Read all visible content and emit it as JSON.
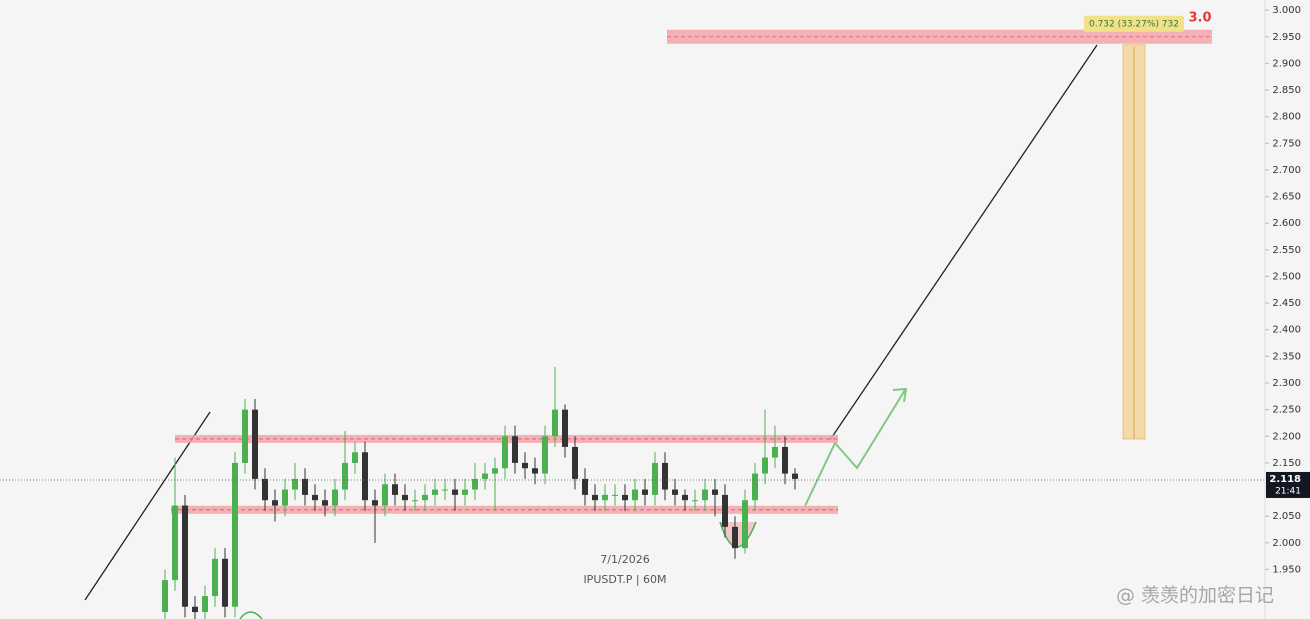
{
  "chart_data": {
    "type": "candlestick",
    "up_color": "#4caf50",
    "down_color": "#333333",
    "open": [
      1.87,
      1.93,
      2.07,
      1.88,
      1.87,
      1.9,
      1.97,
      1.88,
      2.15,
      2.25,
      2.12,
      2.08,
      2.07,
      2.1,
      2.12,
      2.09,
      2.08,
      2.07,
      2.1,
      2.15,
      2.17,
      2.08,
      2.07,
      2.11,
      2.09,
      2.08,
      2.08,
      2.09,
      2.1,
      2.1,
      2.09,
      2.1,
      2.12,
      2.13,
      2.14,
      2.2,
      2.15,
      2.14,
      2.13,
      2.2,
      2.25,
      2.18,
      2.12,
      2.09,
      2.08,
      2.09,
      2.09,
      2.08,
      2.1,
      2.09,
      2.15,
      2.1,
      2.09,
      2.08,
      2.08,
      2.1,
      2.09,
      2.03,
      1.99,
      2.08,
      2.13,
      2.16,
      2.18,
      2.13
    ],
    "high": [
      1.95,
      2.16,
      2.09,
      1.9,
      1.92,
      1.99,
      1.99,
      2.17,
      2.27,
      2.27,
      2.14,
      2.1,
      2.12,
      2.15,
      2.14,
      2.11,
      2.1,
      2.12,
      2.21,
      2.19,
      2.19,
      2.1,
      2.13,
      2.13,
      2.11,
      2.1,
      2.11,
      2.12,
      2.12,
      2.12,
      2.12,
      2.15,
      2.15,
      2.16,
      2.22,
      2.22,
      2.17,
      2.16,
      2.22,
      2.33,
      2.26,
      2.2,
      2.14,
      2.11,
      2.11,
      2.11,
      2.11,
      2.12,
      2.12,
      2.17,
      2.17,
      2.12,
      2.1,
      2.1,
      2.12,
      2.12,
      2.11,
      2.05,
      2.1,
      2.15,
      2.25,
      2.22,
      2.2,
      2.14
    ],
    "low": [
      1.85,
      1.91,
      1.86,
      1.85,
      1.85,
      1.88,
      1.86,
      1.86,
      2.13,
      2.1,
      2.06,
      2.04,
      2.05,
      2.08,
      2.07,
      2.06,
      2.05,
      2.05,
      2.08,
      2.13,
      2.06,
      2.0,
      2.05,
      2.07,
      2.06,
      2.06,
      2.06,
      2.07,
      2.08,
      2.06,
      2.07,
      2.08,
      2.1,
      2.06,
      2.12,
      2.13,
      2.12,
      2.11,
      2.11,
      2.18,
      2.16,
      2.1,
      2.07,
      2.06,
      2.06,
      2.07,
      2.06,
      2.06,
      2.07,
      2.07,
      2.08,
      2.07,
      2.06,
      2.06,
      2.06,
      2.05,
      2.01,
      1.97,
      1.98,
      2.06,
      2.11,
      2.14,
      2.11,
      2.1
    ],
    "close": [
      1.93,
      2.07,
      1.88,
      1.87,
      1.9,
      1.97,
      1.88,
      2.15,
      2.25,
      2.12,
      2.08,
      2.07,
      2.1,
      2.12,
      2.09,
      2.08,
      2.07,
      2.1,
      2.15,
      2.17,
      2.08,
      2.07,
      2.11,
      2.09,
      2.08,
      2.08,
      2.09,
      2.1,
      2.1,
      2.09,
      2.1,
      2.12,
      2.13,
      2.14,
      2.2,
      2.15,
      2.14,
      2.13,
      2.2,
      2.25,
      2.18,
      2.12,
      2.09,
      2.08,
      2.09,
      2.09,
      2.08,
      2.1,
      2.09,
      2.15,
      2.1,
      2.09,
      2.08,
      2.08,
      2.1,
      2.09,
      2.03,
      1.99,
      2.08,
      2.13,
      2.16,
      2.18,
      2.13,
      2.12
    ],
    "ylim": [
      1.857,
      3.019
    ],
    "yticks": [
      {
        "value": 3.0,
        "label": "3.000"
      },
      {
        "value": 2.95,
        "label": "2.950"
      },
      {
        "value": 2.9,
        "label": "2.900"
      },
      {
        "value": 2.85,
        "label": "2.850"
      },
      {
        "value": 2.8,
        "label": "2.800"
      },
      {
        "value": 2.75,
        "label": "2.750"
      },
      {
        "value": 2.7,
        "label": "2.700"
      },
      {
        "value": 2.65,
        "label": "2.650"
      },
      {
        "value": 2.6,
        "label": "2.600"
      },
      {
        "value": 2.55,
        "label": "2.550"
      },
      {
        "value": 2.5,
        "label": "2.500"
      },
      {
        "value": 2.45,
        "label": "2.450"
      },
      {
        "value": 2.4,
        "label": "2.400"
      },
      {
        "value": 2.35,
        "label": "2.350"
      },
      {
        "value": 2.3,
        "label": "2.300"
      },
      {
        "value": 2.25,
        "label": "2.250"
      },
      {
        "value": 2.2,
        "label": "2.200"
      },
      {
        "value": 2.15,
        "label": "2.150"
      },
      {
        "value": 2.05,
        "label": "2.050"
      },
      {
        "value": 2.0,
        "label": "2.000"
      },
      {
        "value": 1.95,
        "label": "1.950"
      }
    ],
    "current_price": 2.118,
    "countdown": "21:41",
    "levels": [
      2.95,
      2.195,
      2.062
    ],
    "target_label": "3.0",
    "measure_label": "0.732 (33.27%) 732",
    "annotations": [
      "7/1/2026",
      "IPUSDT.P | 60M"
    ],
    "watermark": "@ 羡羡的加密日记"
  }
}
